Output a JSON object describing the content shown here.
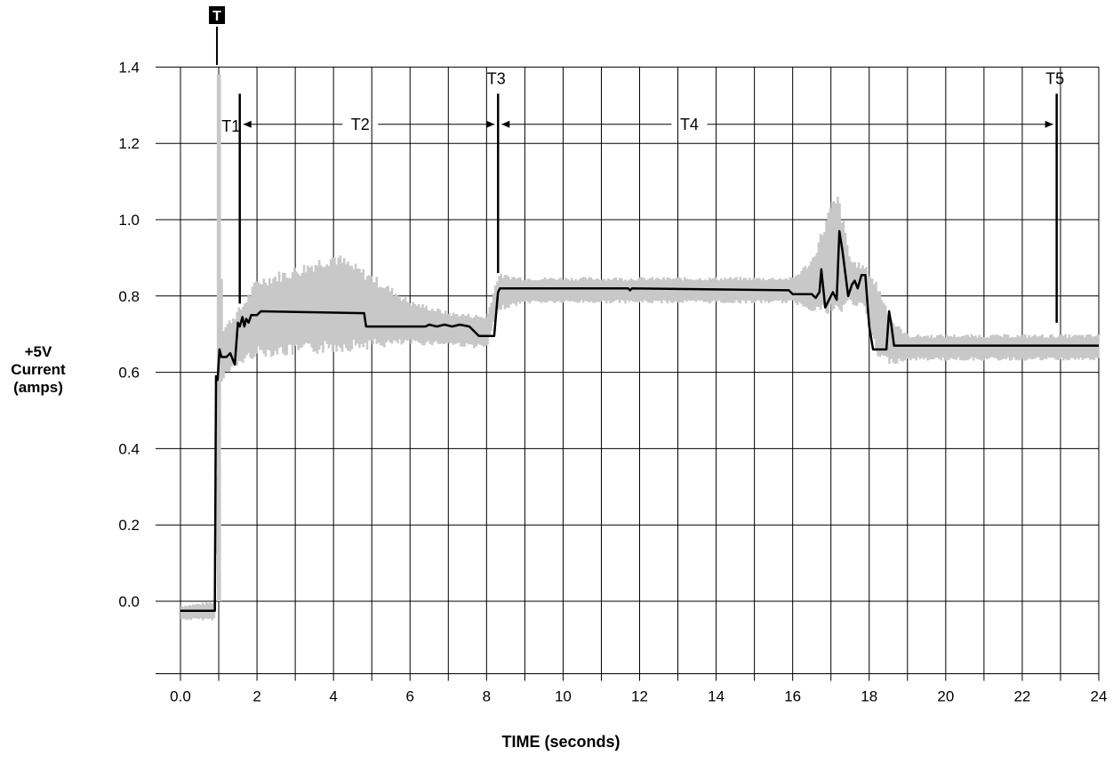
{
  "chart_data": {
    "type": "line",
    "title": "",
    "xlabel": "TIME (seconds)",
    "ylabel_lines": [
      "+5V",
      "Current",
      "(amps)"
    ],
    "xlim": [
      0,
      24
    ],
    "ylim": [
      -0.2,
      1.4
    ],
    "x_ticks": [
      0,
      2,
      4,
      6,
      8,
      10,
      12,
      14,
      16,
      18,
      20,
      22,
      24
    ],
    "x_tick_labels": [
      "0.0",
      "2",
      "4",
      "6",
      "8",
      "10",
      "12",
      "14",
      "16",
      "18",
      "20",
      "22",
      "24"
    ],
    "y_ticks": [
      0.0,
      0.2,
      0.4,
      0.6,
      0.8,
      1.0,
      1.2,
      1.4
    ],
    "y_tick_labels": [
      "0.0",
      "0.2",
      "0.4",
      "0.6",
      "0.8",
      "1.0",
      "1.2",
      "1.4"
    ],
    "x_minor_gridlines": [
      1,
      3,
      5,
      7,
      9,
      11,
      13,
      15,
      17,
      19,
      21,
      23
    ],
    "y_extra_gridline": -0.19,
    "grid": true,
    "trigger_marker": {
      "label": "T",
      "x": 1.0
    },
    "time_markers": [
      {
        "label": "T1",
        "x": 1.55,
        "y_top": 1.33,
        "y_bottom": 0.78
      },
      {
        "label": "T3",
        "x": 8.3,
        "y_top": 1.33,
        "y_bottom": 0.86
      },
      {
        "label": "T5",
        "x": 22.9,
        "y_top": 1.33,
        "y_bottom": 0.73
      }
    ],
    "intervals": [
      {
        "label": "T2",
        "x_start": 1.55,
        "x_end": 8.3,
        "y": 1.25,
        "label_x": 4.7
      },
      {
        "label": "T4",
        "x_start": 8.3,
        "x_end": 22.9,
        "y": 1.25,
        "label_x": 13.3
      }
    ],
    "series": [
      {
        "role": "average",
        "color": "#000000",
        "x": [
          0,
          0.9,
          0.9,
          0.93,
          0.97,
          1.02,
          1.07,
          1.12,
          1.2,
          1.3,
          1.42,
          1.5,
          1.55,
          1.62,
          1.67,
          1.72,
          1.78,
          1.85,
          2.0,
          2.1,
          4.8,
          4.85,
          6.4,
          6.5,
          6.7,
          6.9,
          7.1,
          7.3,
          7.55,
          7.8,
          8.2,
          8.3,
          8.35,
          11.7,
          11.75,
          11.8,
          15.9,
          16.0,
          16.5,
          16.6,
          16.7,
          16.75,
          16.85,
          16.95,
          17.05,
          17.15,
          17.22,
          17.3,
          17.45,
          17.55,
          17.62,
          17.7,
          17.8,
          17.9,
          18.0,
          18.1,
          18.2,
          18.45,
          18.52,
          18.57,
          18.65,
          24.0
        ],
        "y": [
          -0.025,
          -0.025,
          0.0,
          0.59,
          0.58,
          0.66,
          0.64,
          0.64,
          0.64,
          0.65,
          0.62,
          0.73,
          0.72,
          0.745,
          0.72,
          0.74,
          0.73,
          0.75,
          0.75,
          0.76,
          0.755,
          0.72,
          0.72,
          0.725,
          0.72,
          0.725,
          0.72,
          0.725,
          0.72,
          0.695,
          0.695,
          0.81,
          0.82,
          0.82,
          0.815,
          0.82,
          0.815,
          0.805,
          0.805,
          0.795,
          0.81,
          0.87,
          0.77,
          0.79,
          0.81,
          0.79,
          0.97,
          0.92,
          0.8,
          0.83,
          0.84,
          0.82,
          0.855,
          0.855,
          0.72,
          0.66,
          0.66,
          0.66,
          0.76,
          0.73,
          0.67,
          0.67
        ]
      },
      {
        "role": "raw-envelope",
        "color": "#c8c8c8",
        "x": [
          0,
          0.9,
          1.0,
          1.1,
          1.6,
          2.0,
          3.0,
          4.0,
          5.0,
          6.0,
          7.0,
          8.0,
          8.3,
          9.0,
          12.0,
          15.0,
          16.0,
          16.5,
          17.0,
          17.2,
          17.5,
          17.9,
          18.2,
          18.6,
          19.0,
          22.0,
          24.0
        ],
        "y_max": [
          -0.01,
          0.0,
          1.38,
          0.72,
          0.78,
          0.85,
          0.88,
          0.92,
          0.86,
          0.79,
          0.76,
          0.75,
          0.86,
          0.85,
          0.85,
          0.85,
          0.85,
          0.9,
          1.05,
          1.07,
          0.9,
          0.88,
          0.84,
          0.74,
          0.7,
          0.7,
          0.7
        ],
        "y_min": [
          -0.05,
          -0.05,
          0.55,
          0.58,
          0.62,
          0.64,
          0.64,
          0.65,
          0.66,
          0.67,
          0.67,
          0.66,
          0.76,
          0.78,
          0.78,
          0.78,
          0.78,
          0.76,
          0.74,
          0.74,
          0.78,
          0.76,
          0.63,
          0.62,
          0.63,
          0.63,
          0.63
        ]
      }
    ]
  }
}
